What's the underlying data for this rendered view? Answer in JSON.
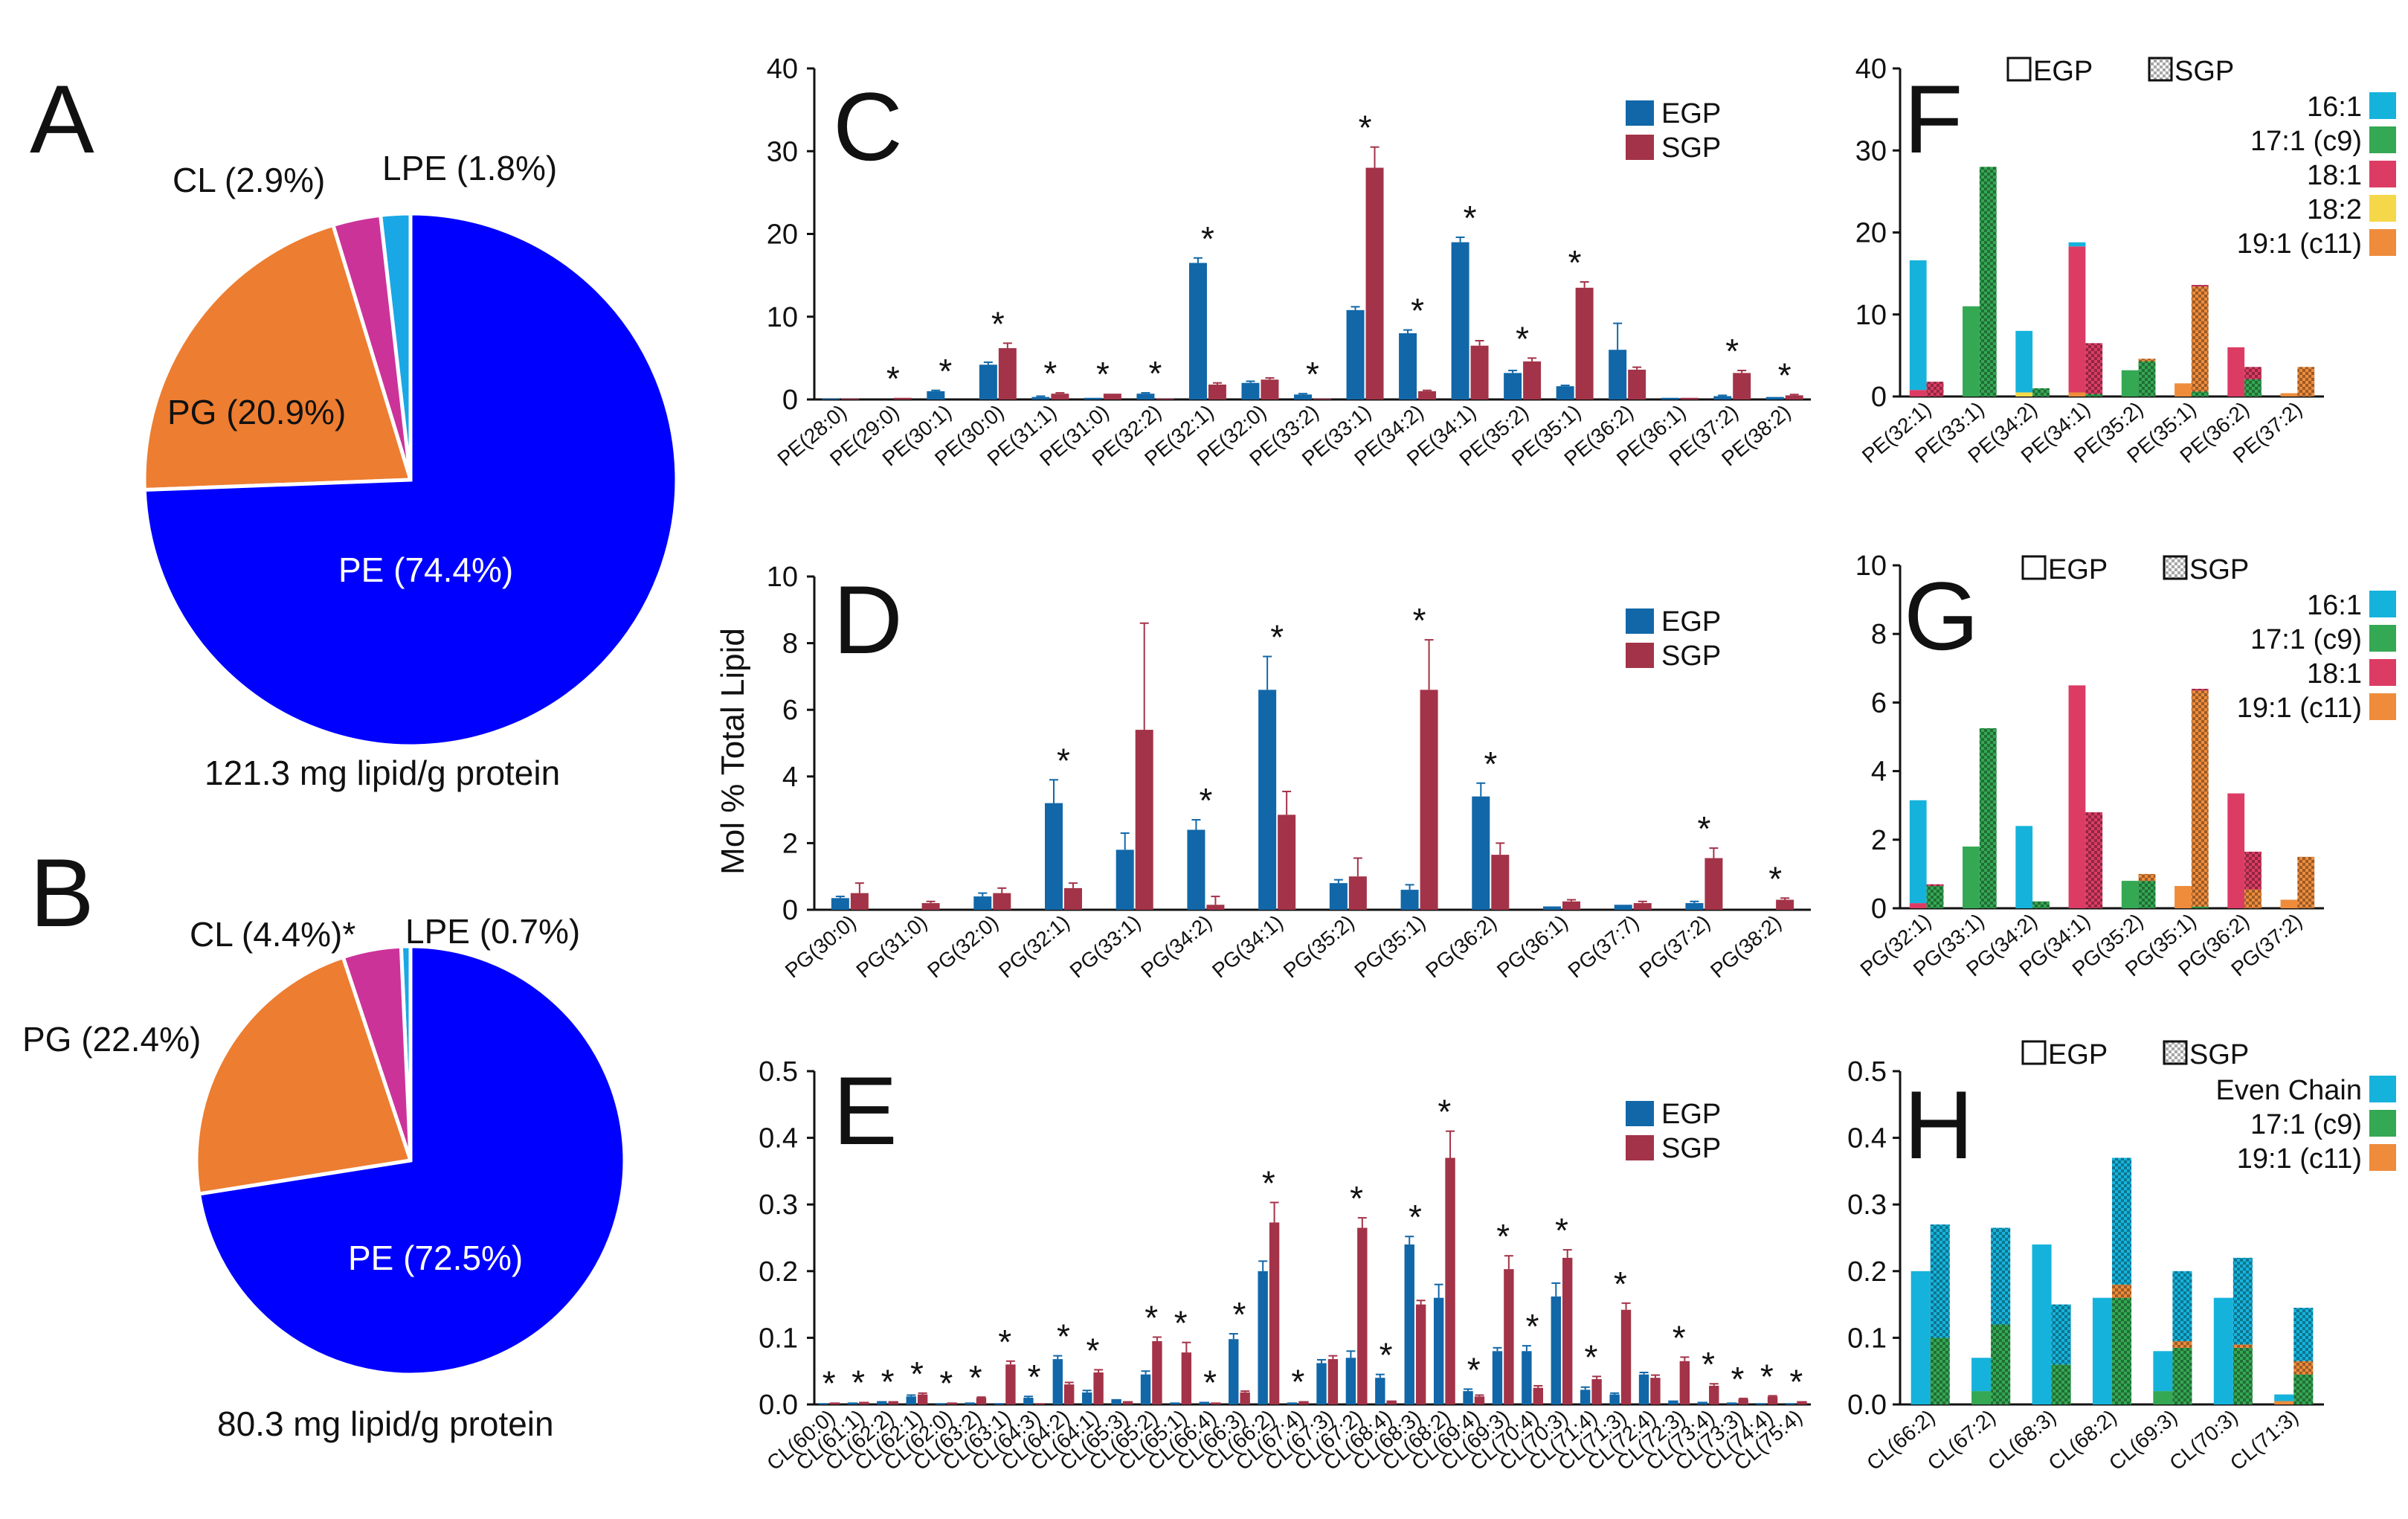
{
  "colors": {
    "PE": "#0000ff",
    "PG": "#ed7d31",
    "CL": "#cc3399",
    "LPE": "#1aa7e6",
    "EGP": "#1167a8",
    "SGP": "#a33348",
    "c16_1": "#15b3dc",
    "c17_1": "#34a853",
    "c18_1": "#dc3c64",
    "c18_2": "#f5d84a",
    "c19_1": "#ee8c3c",
    "even": "#15b3dc"
  },
  "pies": [
    {
      "letter": "A",
      "caption": "121.3 mg lipid/g protein",
      "slices": [
        {
          "name": "PE",
          "value": 74.4,
          "label": "PE (74.4%)"
        },
        {
          "name": "PG",
          "value": 20.9,
          "label": "PG (20.9%)"
        },
        {
          "name": "CL",
          "value": 2.9,
          "label": "CL (2.9%)"
        },
        {
          "name": "LPE",
          "value": 1.8,
          "label": "LPE (1.8%)"
        }
      ]
    },
    {
      "letter": "B",
      "caption": "80.3 mg lipid/g protein",
      "slices": [
        {
          "name": "PE",
          "value": 72.5,
          "label": "PE (72.5%)"
        },
        {
          "name": "PG",
          "value": 22.4,
          "label": "PG (22.4%)"
        },
        {
          "name": "CL",
          "value": 4.4,
          "label": "CL (4.4%)*"
        },
        {
          "name": "LPE",
          "value": 0.7,
          "label": "LPE (0.7%)"
        }
      ]
    }
  ],
  "y_axis_label": "Mol % Total Lipid",
  "chart_data": [
    {
      "panel": "C",
      "type": "bar",
      "ylim": [
        0,
        40
      ],
      "yticks": [
        "0",
        "10",
        "20",
        "30",
        "40"
      ],
      "legend": [
        "EGP",
        "SGP"
      ],
      "categories": [
        "PE(28:0)",
        "PE(29:0)",
        "PE(30:1)",
        "PE(30:0)",
        "PE(31:1)",
        "PE(31:0)",
        "PE(32:2)",
        "PE(32:1)",
        "PE(32:0)",
        "PE(33:2)",
        "PE(33:1)",
        "PE(34:2)",
        "PE(34:1)",
        "PE(35:2)",
        "PE(35:1)",
        "PE(36:2)",
        "PE(36:1)",
        "PE(37:2)",
        "PE(38:2)"
      ],
      "series": [
        {
          "name": "EGP",
          "values": [
            0.1,
            0.0,
            1.0,
            4.2,
            0.3,
            0.2,
            0.7,
            16.5,
            2.0,
            0.6,
            10.8,
            8.0,
            19.0,
            3.2,
            1.6,
            6.0,
            0.2,
            0.4,
            0.3
          ],
          "errors": [
            0,
            0,
            0.1,
            0.3,
            0.1,
            0,
            0.1,
            0.6,
            0.2,
            0.1,
            0.4,
            0.4,
            0.6,
            0.3,
            0.1,
            3.2,
            0,
            0.1,
            0
          ]
        },
        {
          "name": "SGP",
          "values": [
            0.1,
            0.2,
            0.0,
            6.2,
            0.7,
            0.7,
            0.1,
            1.8,
            2.4,
            0.1,
            28.0,
            1.0,
            6.5,
            4.6,
            13.5,
            3.6,
            0.2,
            3.2,
            0.5
          ],
          "errors": [
            0,
            0,
            0,
            0.6,
            0.1,
            0,
            0,
            0.2,
            0.2,
            0,
            2.5,
            0.1,
            0.6,
            0.4,
            0.7,
            0.3,
            0,
            0.3,
            0.1
          ]
        }
      ],
      "stars": [
        "",
        "*",
        "*",
        "*",
        "*",
        "*",
        "*",
        "*",
        "",
        "*",
        "*",
        "*",
        "*",
        "*",
        "*",
        "",
        "",
        "*",
        "*"
      ]
    },
    {
      "panel": "D",
      "type": "bar",
      "ylim": [
        0,
        10
      ],
      "yticks": [
        "0",
        "2",
        "4",
        "6",
        "8",
        "10"
      ],
      "legend": [
        "EGP",
        "SGP"
      ],
      "categories": [
        "PG(30:0)",
        "PG(31:0)",
        "PG(32:0)",
        "PG(32:1)",
        "PG(33:1)",
        "PG(34:2)",
        "PG(34:1)",
        "PG(35:2)",
        "PG(35:1)",
        "PG(36:2)",
        "PG(36:1)",
        "PG(37:7)",
        "PG(37:2)",
        "PG(38:2)"
      ],
      "series": [
        {
          "name": "EGP",
          "values": [
            0.35,
            0.0,
            0.4,
            3.2,
            1.8,
            2.4,
            6.6,
            0.8,
            0.6,
            3.4,
            0.1,
            0.15,
            0.2,
            0.0
          ],
          "errors": [
            0.05,
            0,
            0.1,
            0.7,
            0.5,
            0.3,
            1.0,
            0.1,
            0.15,
            0.4,
            0,
            0,
            0.05,
            0
          ]
        },
        {
          "name": "SGP",
          "values": [
            0.5,
            0.2,
            0.5,
            0.65,
            5.4,
            0.15,
            2.85,
            1.0,
            6.6,
            1.65,
            0.25,
            0.2,
            1.55,
            0.3
          ],
          "errors": [
            0.3,
            0.05,
            0.15,
            0.15,
            3.2,
            0.25,
            0.7,
            0.55,
            1.5,
            0.35,
            0.05,
            0.05,
            0.3,
            0.05
          ]
        }
      ],
      "stars": [
        "",
        "",
        "",
        "*",
        "",
        "*",
        "*",
        "",
        "*",
        "*",
        "",
        "",
        "*",
        "*"
      ]
    },
    {
      "panel": "E",
      "type": "bar",
      "ylim": [
        0,
        0.5
      ],
      "yticks": [
        "0.0",
        "0.1",
        "0.2",
        "0.3",
        "0.4",
        "0.5"
      ],
      "legend": [
        "EGP",
        "SGP"
      ],
      "categories": [
        "CL(60:0)",
        "CL(61:1)",
        "CL(62:2)",
        "CL(62:1)",
        "CL(62:0)",
        "CL(63:2)",
        "CL(63:1)",
        "CL(64:3)",
        "CL(64:2)",
        "CL(64:1)",
        "CL(65:3)",
        "CL(65:2)",
        "CL(65:1)",
        "CL(66:4)",
        "CL(66:3)",
        "CL(66:2)",
        "CL(67:4)",
        "CL(67:3)",
        "CL(67:2)",
        "CL(68:4)",
        "CL(68:3)",
        "CL(68:2)",
        "CL(69:4)",
        "CL(69:3)",
        "CL(70:4)",
        "CL(70:3)",
        "CL(71:4)",
        "CL(71:3)",
        "CL(72:4)",
        "CL(72:3)",
        "CL(73:4)",
        "CL(73:3)",
        "CL(74:4)",
        "CL(75:4)"
      ],
      "series": [
        {
          "name": "EGP",
          "values": [
            0.002,
            0.003,
            0.005,
            0.012,
            0.002,
            0.003,
            0.002,
            0.01,
            0.068,
            0.018,
            0.008,
            0.045,
            0.003,
            0.004,
            0.098,
            0.2,
            0.003,
            0.062,
            0.07,
            0.04,
            0.24,
            0.16,
            0.02,
            0.08,
            0.08,
            0.162,
            0.022,
            0.015,
            0.045,
            0.006,
            0.004,
            0.003,
            0.002,
            0.002
          ],
          "errors": [
            0,
            0,
            0,
            0.002,
            0,
            0,
            0,
            0.002,
            0.005,
            0.003,
            0,
            0.005,
            0,
            0,
            0.008,
            0.015,
            0,
            0.005,
            0.01,
            0.005,
            0.012,
            0.02,
            0.003,
            0.005,
            0.008,
            0.02,
            0.004,
            0.002,
            0.003,
            0,
            0,
            0,
            0,
            0
          ]
        },
        {
          "name": "SGP",
          "values": [
            0.003,
            0.004,
            0.005,
            0.015,
            0.003,
            0.01,
            0.06,
            0.002,
            0.03,
            0.048,
            0.005,
            0.095,
            0.078,
            0.003,
            0.018,
            0.273,
            0.005,
            0.068,
            0.265,
            0.006,
            0.15,
            0.37,
            0.012,
            0.203,
            0.025,
            0.22,
            0.038,
            0.142,
            0.04,
            0.065,
            0.028,
            0.008,
            0.012,
            0.005
          ],
          "errors": [
            0,
            0,
            0,
            0.002,
            0,
            0.001,
            0.005,
            0,
            0.003,
            0.004,
            0,
            0.006,
            0.015,
            0,
            0.002,
            0.03,
            0,
            0.005,
            0.015,
            0,
            0.006,
            0.04,
            0.002,
            0.02,
            0.003,
            0.012,
            0.004,
            0.01,
            0.004,
            0.006,
            0.003,
            0.001,
            0.001,
            0
          ]
        }
      ],
      "stars": [
        "*",
        "*",
        "*",
        "*",
        "*",
        "*",
        "*",
        "*",
        "*",
        "*",
        "",
        "*",
        "*",
        "*",
        "*",
        "*",
        "*",
        "",
        "*",
        "*",
        "*",
        "*",
        "*",
        "*",
        "*",
        "*",
        "*",
        "*",
        "",
        "*",
        "*",
        "*",
        "*",
        "*"
      ]
    },
    {
      "panel": "F",
      "type": "bar",
      "stacked": true,
      "ylim": [
        0,
        40
      ],
      "yticks": [
        "0",
        "10",
        "20",
        "30",
        "40"
      ],
      "legend_head": [
        "EGP",
        "SGP"
      ],
      "components": [
        {
          "name": "16:1",
          "color_key": "c16_1"
        },
        {
          "name": "17:1 (c9)",
          "color_key": "c17_1"
        },
        {
          "name": "18:1",
          "color_key": "c18_1"
        },
        {
          "name": "18:2",
          "color_key": "c18_2"
        },
        {
          "name": "19:1 (c11)",
          "color_key": "c19_1"
        }
      ],
      "categories": [
        "PE(32:1)",
        "PE(33:1)",
        "PE(34:2)",
        "PE(34:1)",
        "PE(35:2)",
        "PE(35:1)",
        "PE(36:2)",
        "PE(37:2)"
      ],
      "series": [
        {
          "name": "EGP",
          "stacks": [
            [
              15.8,
              0,
              0.8,
              0,
              0
            ],
            [
              0,
              11,
              0,
              0,
              0
            ],
            [
              7.5,
              0,
              0,
              0.5,
              0
            ],
            [
              0.5,
              0,
              17.8,
              0,
              0.5
            ],
            [
              0,
              3.2,
              0,
              0,
              0
            ],
            [
              0,
              0,
              0,
              0,
              1.6
            ],
            [
              0,
              0,
              6.0,
              0,
              0
            ],
            [
              0,
              0,
              0,
              0,
              0.4
            ]
          ]
        },
        {
          "name": "SGP",
          "stacks": [
            [
              0,
              0,
              1.8,
              0,
              0
            ],
            [
              0,
              28,
              0,
              0,
              0
            ],
            [
              0,
              1.0,
              0,
              0,
              0
            ],
            [
              0,
              0.3,
              6.2,
              0,
              0
            ],
            [
              0,
              4.3,
              0,
              0,
              0.3
            ],
            [
              0,
              0.6,
              0.2,
              0,
              12.8
            ],
            [
              0,
              2.1,
              1.5,
              0,
              0
            ],
            [
              0,
              0,
              0,
              0,
              3.6
            ]
          ]
        }
      ]
    },
    {
      "panel": "G",
      "type": "bar",
      "stacked": true,
      "ylim": [
        0,
        10
      ],
      "yticks": [
        "0",
        "2",
        "4",
        "6",
        "8",
        "10"
      ],
      "legend_head": [
        "EGP",
        "SGP"
      ],
      "components": [
        {
          "name": "16:1",
          "color_key": "c16_1"
        },
        {
          "name": "17:1 (c9)",
          "color_key": "c17_1"
        },
        {
          "name": "18:1",
          "color_key": "c18_1"
        },
        {
          "name": "19:1 (c11)",
          "color_key": "c19_1"
        }
      ],
      "categories": [
        "PG(32:1)",
        "PG(33:1)",
        "PG(34:2)",
        "PG(34:1)",
        "PG(35:2)",
        "PG(35:1)",
        "PG(36:2)",
        "PG(37:2)"
      ],
      "series": [
        {
          "name": "EGP",
          "stacks": [
            [
              3.0,
              0,
              0.15,
              0
            ],
            [
              0,
              1.8,
              0,
              0
            ],
            [
              2.4,
              0,
              0,
              0
            ],
            [
              0,
              0,
              6.5,
              0
            ],
            [
              0,
              0.8,
              0,
              0
            ],
            [
              0,
              0,
              0,
              0.65
            ],
            [
              0,
              0,
              3.35,
              0
            ],
            [
              0,
              0,
              0,
              0.25
            ]
          ]
        },
        {
          "name": "SGP",
          "stacks": [
            [
              0,
              0.65,
              0.05,
              0
            ],
            [
              0,
              5.25,
              0,
              0
            ],
            [
              0,
              0.2,
              0,
              0
            ],
            [
              0,
              0,
              2.8,
              0
            ],
            [
              0,
              0.8,
              0,
              0.2
            ],
            [
              0,
              0.05,
              0.05,
              6.3
            ],
            [
              0,
              0,
              1.1,
              0.55
            ],
            [
              0,
              0,
              0,
              1.5
            ]
          ]
        }
      ]
    },
    {
      "panel": "H",
      "type": "bar",
      "stacked": true,
      "ylim": [
        0,
        0.5
      ],
      "yticks": [
        "0.0",
        "0.1",
        "0.2",
        "0.3",
        "0.4",
        "0.5"
      ],
      "legend_head": [
        "EGP",
        "SGP"
      ],
      "components": [
        {
          "name": "Even Chain",
          "color_key": "even"
        },
        {
          "name": "17:1 (c9)",
          "color_key": "c17_1"
        },
        {
          "name": "19:1 (c11)",
          "color_key": "c19_1"
        }
      ],
      "categories": [
        "CL(66:2)",
        "CL(67:2)",
        "CL(68:3)",
        "CL(68:2)",
        "CL(69:3)",
        "CL(70:3)",
        "CL(71:3)"
      ],
      "series": [
        {
          "name": "EGP",
          "stacks": [
            [
              0.2,
              0,
              0
            ],
            [
              0.05,
              0.02,
              0
            ],
            [
              0.24,
              0,
              0
            ],
            [
              0.16,
              0,
              0
            ],
            [
              0.06,
              0.02,
              0
            ],
            [
              0.16,
              0,
              0
            ],
            [
              0.01,
              0,
              0.005
            ]
          ]
        },
        {
          "name": "SGP",
          "stacks": [
            [
              0.17,
              0.1,
              0
            ],
            [
              0.145,
              0.12,
              0
            ],
            [
              0.09,
              0.06,
              0
            ],
            [
              0.19,
              0.16,
              0.02
            ],
            [
              0.105,
              0.085,
              0.01
            ],
            [
              0.13,
              0.085,
              0.005
            ],
            [
              0.08,
              0.045,
              0.02
            ]
          ]
        }
      ]
    }
  ]
}
